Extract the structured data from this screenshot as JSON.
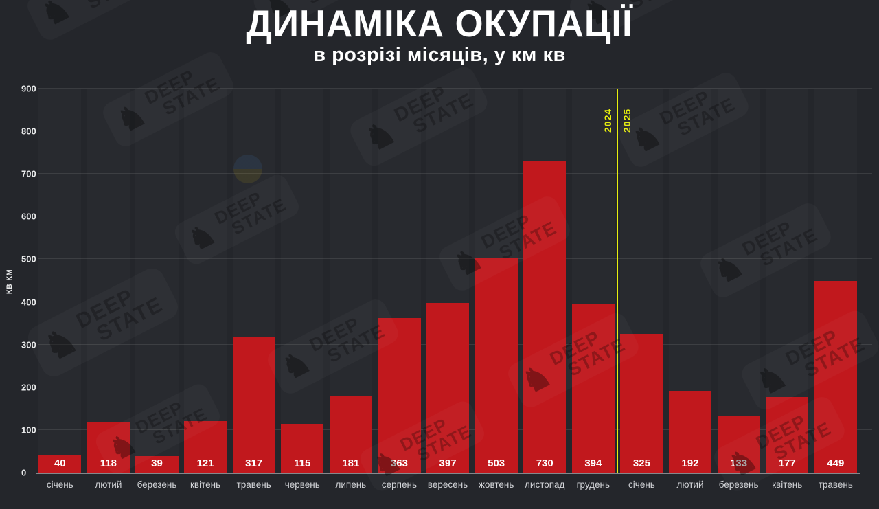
{
  "header": {
    "title": "ДИНАМІКА ОКУПАЦІЇ",
    "subtitle": "в розрізі місяців, у км кв"
  },
  "watermark": {
    "line1": "DEEP",
    "line2": "STATE",
    "icon": "chess-knight-icon"
  },
  "chart_data": {
    "type": "bar",
    "title": "ДИНАМІКА ОКУПАЦІЇ",
    "subtitle": "в розрізі місяців, у км кв",
    "ylabel": "КВ КМ",
    "xlabel": "",
    "ylim": [
      0,
      900
    ],
    "yticks": [
      0,
      100,
      200,
      300,
      400,
      500,
      600,
      700,
      800,
      900
    ],
    "grid": "horizontal",
    "legend": "none",
    "categories": [
      "січень",
      "лютий",
      "березень",
      "квітень",
      "травень",
      "червень",
      "липень",
      "серпень",
      "вересень",
      "жовтень",
      "листопад",
      "грудень",
      "січень",
      "лютий",
      "березень",
      "квітень",
      "травень"
    ],
    "values": [
      40,
      118,
      39,
      121,
      317,
      115,
      181,
      363,
      397,
      503,
      730,
      394,
      325,
      192,
      133,
      177,
      449
    ],
    "bar_color": "#c1181d",
    "value_label_color": "#ffffff",
    "background_color": "#24262b",
    "year_divider": {
      "after_index": 11,
      "left_label": "2024",
      "right_label": "2025",
      "color": "#e7ee0e"
    }
  }
}
